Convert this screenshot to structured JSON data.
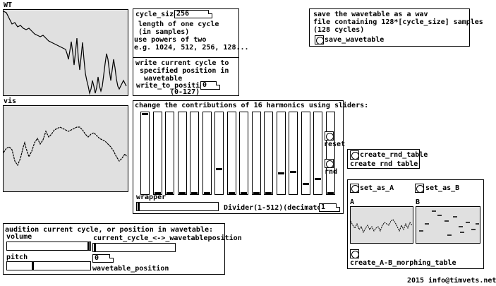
{
  "wt": {
    "label": "WT"
  },
  "vis": {
    "label": "vis"
  },
  "cycle_size": {
    "label": "cycle_size",
    "value": "256",
    "desc": " length of one cycle\n (in samples)\nuse powers of two\ne.g. 1024, 512, 256, 128..."
  },
  "write": {
    "desc": "write current cycle to\n specified position in\n  wavetable",
    "label": "write_to_position",
    "value": "0",
    "range": "(0-127)"
  },
  "save": {
    "desc": "save the wavetable as a wav\nfile containing 128*[cycle_size] samples\n(128 cycles)",
    "button": "save_wavetable"
  },
  "harmonics": {
    "title": "change the contributions of 16 harmonics using sliders:",
    "levels": [
      1.0,
      0.0,
      0.0,
      0.0,
      0.0,
      0.0,
      0.3,
      0.0,
      0.0,
      0.0,
      0.0,
      0.25,
      0.27,
      0.12,
      0.18,
      0.0
    ],
    "reset": "reset",
    "rnd": "rnd",
    "wrapper": "wrapper",
    "divider_label": "Divider(1-512)(decimator)",
    "divider_value": "1"
  },
  "rnd_table": {
    "button": "create_rnd_table",
    "label": "create rnd table"
  },
  "ab": {
    "set_a": "set_as_A",
    "set_b": "set_as_B",
    "a_label": "A",
    "b_label": "B",
    "morph": "create_A-B_morphing_table"
  },
  "audition": {
    "title": "audition current cycle, or position in wavetable:",
    "volume": "volume",
    "pitch": "pitch",
    "cycle_pos": "current_cycle_<->_wavetableposition",
    "pos_value": "0",
    "wt_pos": "wavetable_position"
  },
  "footer": {
    "credit": "2015 info@timvets.net"
  }
}
